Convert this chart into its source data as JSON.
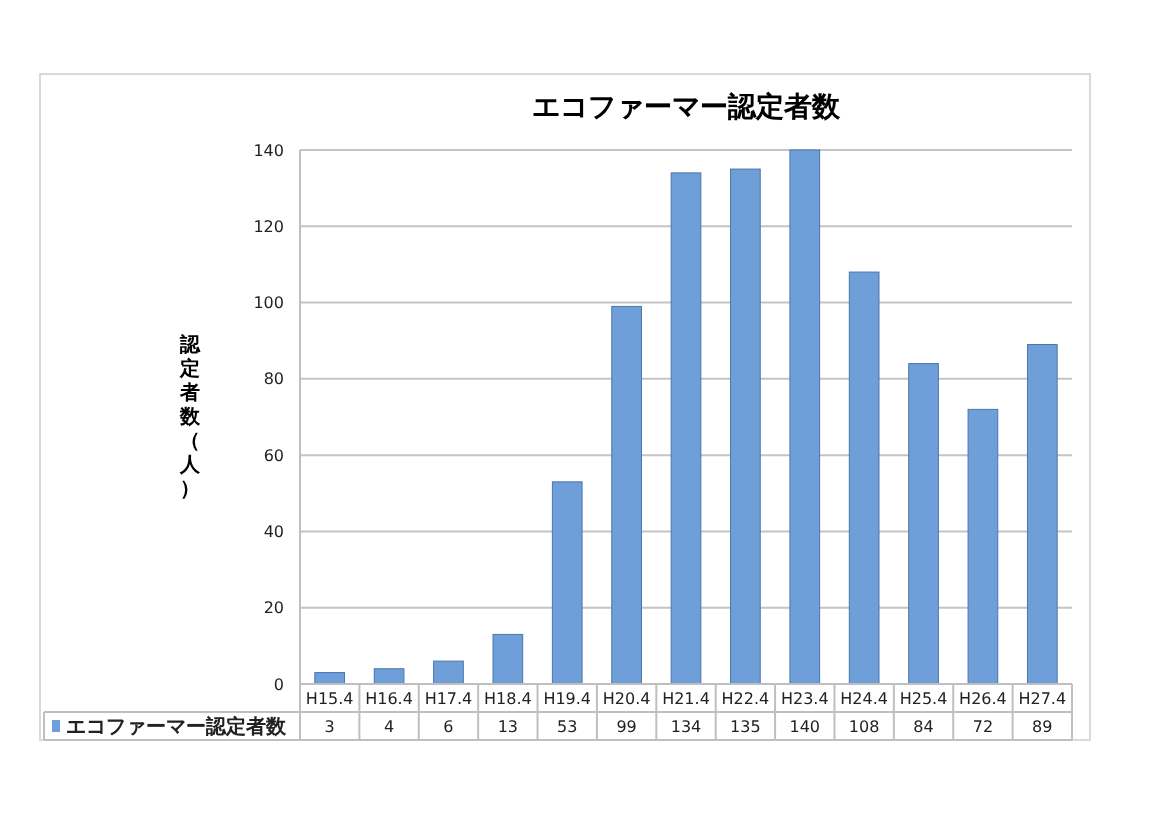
{
  "chart_data": {
    "type": "bar",
    "title": "エコファーマー認定者数",
    "ylabel": "認定者数（人）",
    "categories": [
      "H15.4",
      "H16.4",
      "H17.4",
      "H18.4",
      "H19.4",
      "H20.4",
      "H21.4",
      "H22.4",
      "H23.4",
      "H24.4",
      "H25.4",
      "H26.4",
      "H27.4"
    ],
    "series": [
      {
        "name": "エコファーマー認定者数",
        "color": "#6f9fd8",
        "values": [
          3,
          4,
          6,
          13,
          53,
          99,
          134,
          135,
          140,
          108,
          84,
          72,
          89
        ]
      }
    ],
    "ylim": [
      0,
      140
    ],
    "yticks": [
      0,
      20,
      40,
      60,
      80,
      100,
      120,
      140
    ],
    "grid": "y",
    "data_labels": true,
    "legend": "bottom left"
  }
}
